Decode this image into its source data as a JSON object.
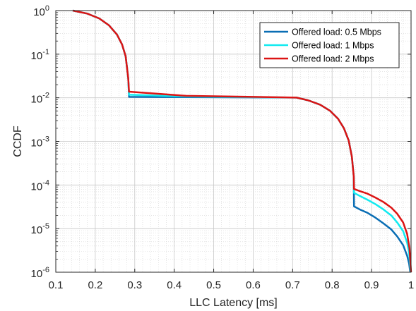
{
  "chart_data": {
    "type": "line",
    "title": "",
    "xlabel": "LLC Latency [ms]",
    "ylabel": "CCDF",
    "xlim": [
      0.1,
      1.0
    ],
    "ylim": [
      1e-06,
      1
    ],
    "yscale": "log",
    "grid": true,
    "minor_grid": true,
    "legend_position": "top-right",
    "x_ticks": [
      "0.1",
      "0.2",
      "0.3",
      "0.4",
      "0.5",
      "0.6",
      "0.7",
      "0.8",
      "0.9",
      "1"
    ],
    "y_ticks": [
      {
        "base": "10",
        "exp": "-6"
      },
      {
        "base": "10",
        "exp": "-5"
      },
      {
        "base": "10",
        "exp": "-4"
      },
      {
        "base": "10",
        "exp": "-3"
      },
      {
        "base": "10",
        "exp": "-2"
      },
      {
        "base": "10",
        "exp": "-1"
      },
      {
        "base": "10",
        "exp": "0"
      }
    ],
    "series": [
      {
        "name": "Offered load: 0.5 Mbps",
        "color": "#0a6eb4",
        "points_log10": [
          [
            0.143,
            0.0
          ],
          [
            0.18,
            -0.07
          ],
          [
            0.21,
            -0.18
          ],
          [
            0.235,
            -0.34
          ],
          [
            0.255,
            -0.55
          ],
          [
            0.268,
            -0.78
          ],
          [
            0.277,
            -1.05
          ],
          [
            0.2835,
            -1.55
          ],
          [
            0.2855,
            -1.98
          ],
          [
            0.43,
            -1.985
          ],
          [
            0.71,
            -1.995
          ],
          [
            0.74,
            -2.06
          ],
          [
            0.77,
            -2.16
          ],
          [
            0.795,
            -2.3
          ],
          [
            0.815,
            -2.48
          ],
          [
            0.83,
            -2.7
          ],
          [
            0.842,
            -2.98
          ],
          [
            0.85,
            -3.35
          ],
          [
            0.8548,
            -3.8
          ],
          [
            0.8555,
            -4.49
          ],
          [
            0.87,
            -4.56
          ],
          [
            0.89,
            -4.64
          ],
          [
            0.91,
            -4.75
          ],
          [
            0.93,
            -4.88
          ],
          [
            0.95,
            -5.02
          ],
          [
            0.965,
            -5.18
          ],
          [
            0.98,
            -5.38
          ],
          [
            0.99,
            -5.62
          ],
          [
            0.995,
            -5.8
          ],
          [
            0.998,
            -6.0
          ]
        ]
      },
      {
        "name": "Offered load: 1 Mbps",
        "color": "#12eaf0",
        "points_log10": [
          [
            0.143,
            0.0
          ],
          [
            0.18,
            -0.07
          ],
          [
            0.21,
            -0.18
          ],
          [
            0.235,
            -0.34
          ],
          [
            0.255,
            -0.55
          ],
          [
            0.268,
            -0.78
          ],
          [
            0.277,
            -1.05
          ],
          [
            0.2835,
            -1.55
          ],
          [
            0.2855,
            -1.93
          ],
          [
            0.43,
            -1.97
          ],
          [
            0.71,
            -1.995
          ],
          [
            0.74,
            -2.06
          ],
          [
            0.77,
            -2.16
          ],
          [
            0.795,
            -2.3
          ],
          [
            0.815,
            -2.48
          ],
          [
            0.83,
            -2.7
          ],
          [
            0.842,
            -2.98
          ],
          [
            0.85,
            -3.35
          ],
          [
            0.8548,
            -3.8
          ],
          [
            0.8555,
            -4.18
          ],
          [
            0.87,
            -4.25
          ],
          [
            0.89,
            -4.34
          ],
          [
            0.91,
            -4.44
          ],
          [
            0.93,
            -4.56
          ],
          [
            0.95,
            -4.7
          ],
          [
            0.965,
            -4.86
          ],
          [
            0.98,
            -5.06
          ],
          [
            0.99,
            -5.32
          ],
          [
            0.995,
            -5.55
          ],
          [
            0.999,
            -6.0
          ]
        ]
      },
      {
        "name": "Offered load: 2 Mbps",
        "color": "#dc1414",
        "points_log10": [
          [
            0.143,
            0.0
          ],
          [
            0.18,
            -0.07
          ],
          [
            0.21,
            -0.18
          ],
          [
            0.235,
            -0.34
          ],
          [
            0.255,
            -0.55
          ],
          [
            0.268,
            -0.78
          ],
          [
            0.277,
            -1.05
          ],
          [
            0.2835,
            -1.55
          ],
          [
            0.2855,
            -1.86
          ],
          [
            0.43,
            -1.955
          ],
          [
            0.71,
            -1.995
          ],
          [
            0.74,
            -2.06
          ],
          [
            0.77,
            -2.16
          ],
          [
            0.795,
            -2.3
          ],
          [
            0.815,
            -2.48
          ],
          [
            0.83,
            -2.7
          ],
          [
            0.842,
            -2.98
          ],
          [
            0.85,
            -3.35
          ],
          [
            0.8548,
            -3.8
          ],
          [
            0.8555,
            -4.09
          ],
          [
            0.87,
            -4.14
          ],
          [
            0.89,
            -4.2
          ],
          [
            0.91,
            -4.29
          ],
          [
            0.93,
            -4.39
          ],
          [
            0.95,
            -4.52
          ],
          [
            0.965,
            -4.66
          ],
          [
            0.98,
            -4.86
          ],
          [
            0.99,
            -5.12
          ],
          [
            0.996,
            -5.45
          ],
          [
            1.0,
            -6.0
          ]
        ]
      }
    ]
  }
}
